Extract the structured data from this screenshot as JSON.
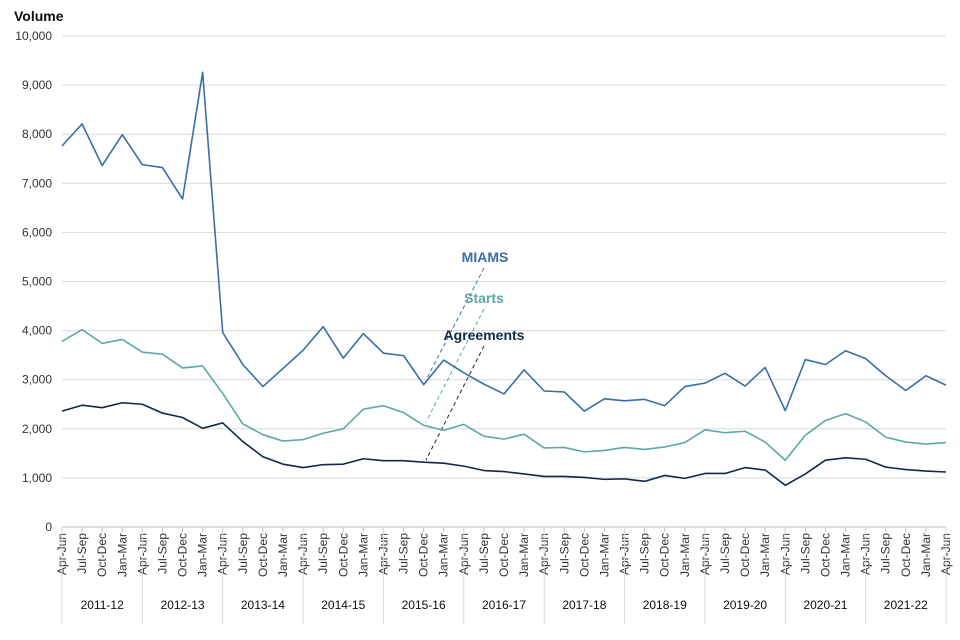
{
  "chart_data": {
    "type": "line",
    "ylabel": "Volume",
    "ylim": [
      0,
      10000
    ],
    "yticks": [
      0,
      1000,
      2000,
      3000,
      4000,
      5000,
      6000,
      7000,
      8000,
      9000,
      10000
    ],
    "ytick_labels": [
      "0",
      "1,000",
      "2,000",
      "3,000",
      "4,000",
      "5,000",
      "6,000",
      "7,000",
      "8,000",
      "9,000",
      "10,000"
    ],
    "grid": "horizontal",
    "x": [
      "Apr-Jun",
      "Jul-Sep",
      "Oct-Dec",
      "Jan-Mar",
      "Apr-Jun",
      "Jul-Sep",
      "Oct-Dec",
      "Jan-Mar",
      "Apr-Jun",
      "Jul-Sep",
      "Oct-Dec",
      "Jan-Mar",
      "Apr-Jun",
      "Jul-Sep",
      "Oct-Dec",
      "Jan-Mar",
      "Apr-Jun",
      "Jul-Sep",
      "Oct-Dec",
      "Jan-Mar",
      "Apr-Jun",
      "Jul-Sep",
      "Oct-Dec",
      "Jan-Mar",
      "Apr-Jun",
      "Jul-Sep",
      "Oct-Dec",
      "Jan-Mar",
      "Apr-Jun",
      "Jul-Sep",
      "Oct-Dec",
      "Jan-Mar",
      "Apr-Jun",
      "Jul-Sep",
      "Oct-Dec",
      "Jan-Mar",
      "Apr-Jun",
      "Jul-Sep",
      "Oct-Dec",
      "Jan-Mar",
      "Apr-Jun",
      "Jul-Sep",
      "Oct-Dec",
      "Jan-Mar",
      "Apr-Jun"
    ],
    "year_groups": [
      "2011-12",
      "2012-13",
      "2013-14",
      "2014-15",
      "2015-16",
      "2016-17",
      "2017-18",
      "2018-19",
      "2019-20",
      "2020-21",
      "2021-22"
    ],
    "series": [
      {
        "name": "MIAMS",
        "color": "#3a6ea5",
        "values": [
          7760,
          8210,
          7360,
          7990,
          7380,
          7320,
          6680,
          9260,
          3960,
          3310,
          2860,
          3230,
          3600,
          4080,
          3440,
          3940,
          3540,
          3490,
          2900,
          3400,
          3140,
          2910,
          2710,
          3200,
          2770,
          2750,
          2360,
          2610,
          2570,
          2600,
          2470,
          2860,
          2930,
          3130,
          2870,
          3250,
          2370,
          3410,
          3310,
          3590,
          3430,
          3080,
          2780,
          3080,
          2890
        ]
      },
      {
        "name": "Starts",
        "color": "#5da9a5",
        "values": [
          3780,
          4020,
          3740,
          3820,
          3560,
          3520,
          3240,
          3280,
          2720,
          2100,
          1880,
          1750,
          1780,
          1910,
          2000,
          2400,
          2470,
          2330,
          2070,
          1970,
          2090,
          1850,
          1790,
          1890,
          1610,
          1620,
          1530,
          1560,
          1620,
          1580,
          1630,
          1720,
          1980,
          1920,
          1950,
          1730,
          1360,
          1870,
          2170,
          2310,
          2140,
          1830,
          1730,
          1690,
          1720
        ]
      },
      {
        "name": "Agreements",
        "color": "#0f2a48",
        "values": [
          2360,
          2480,
          2430,
          2530,
          2500,
          2320,
          2230,
          2010,
          2120,
          1740,
          1430,
          1280,
          1210,
          1270,
          1280,
          1390,
          1350,
          1350,
          1320,
          1300,
          1240,
          1150,
          1130,
          1080,
          1030,
          1030,
          1010,
          970,
          980,
          930,
          1050,
          990,
          1090,
          1090,
          1210,
          1160,
          850,
          1080,
          1360,
          1410,
          1380,
          1220,
          1170,
          1140,
          1120
        ]
      }
    ]
  }
}
